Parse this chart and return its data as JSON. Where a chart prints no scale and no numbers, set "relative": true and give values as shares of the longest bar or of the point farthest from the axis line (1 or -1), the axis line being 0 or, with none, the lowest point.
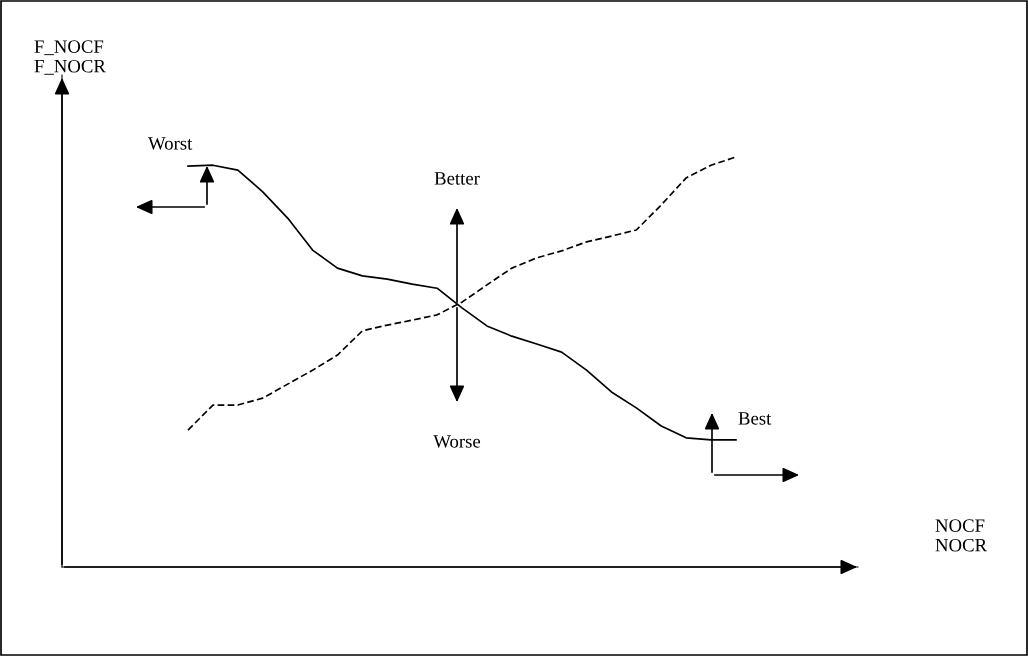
{
  "chart_data": {
    "type": "line",
    "relative": true,
    "categories": [
      null,
      null,
      null,
      null,
      null,
      null,
      null,
      null,
      null,
      null,
      null,
      null,
      null,
      null,
      null,
      null,
      null,
      null,
      null,
      null,
      null,
      null,
      null
    ],
    "series": [
      {
        "color": "#000000",
        "line_style": "solid",
        "values": [
          0.978,
          0.98,
          0.968,
          0.915,
          0.851,
          0.773,
          0.729,
          0.71,
          0.702,
          0.69,
          0.68,
          0.632,
          0.588,
          0.563,
          0.544,
          0.524,
          0.48,
          0.427,
          0.388,
          0.344,
          0.315,
          0.31,
          0.31
        ]
      },
      {
        "color": "#000000",
        "line_style": "dashed",
        "values": [
          0.334,
          0.395,
          0.395,
          0.412,
          0.446,
          0.48,
          0.517,
          0.576,
          0.59,
          0.602,
          0.615,
          0.646,
          0.688,
          0.729,
          0.754,
          0.771,
          0.793,
          0.807,
          0.822,
          0.883,
          0.949,
          0.98,
          1
        ]
      }
    ],
    "annotations": [
      "Worst",
      "Better",
      "Worse",
      "Best",
      "F_NOCF\nF_NOCR",
      "NOCF\nNOCR"
    ],
    "marker": "none"
  }
}
